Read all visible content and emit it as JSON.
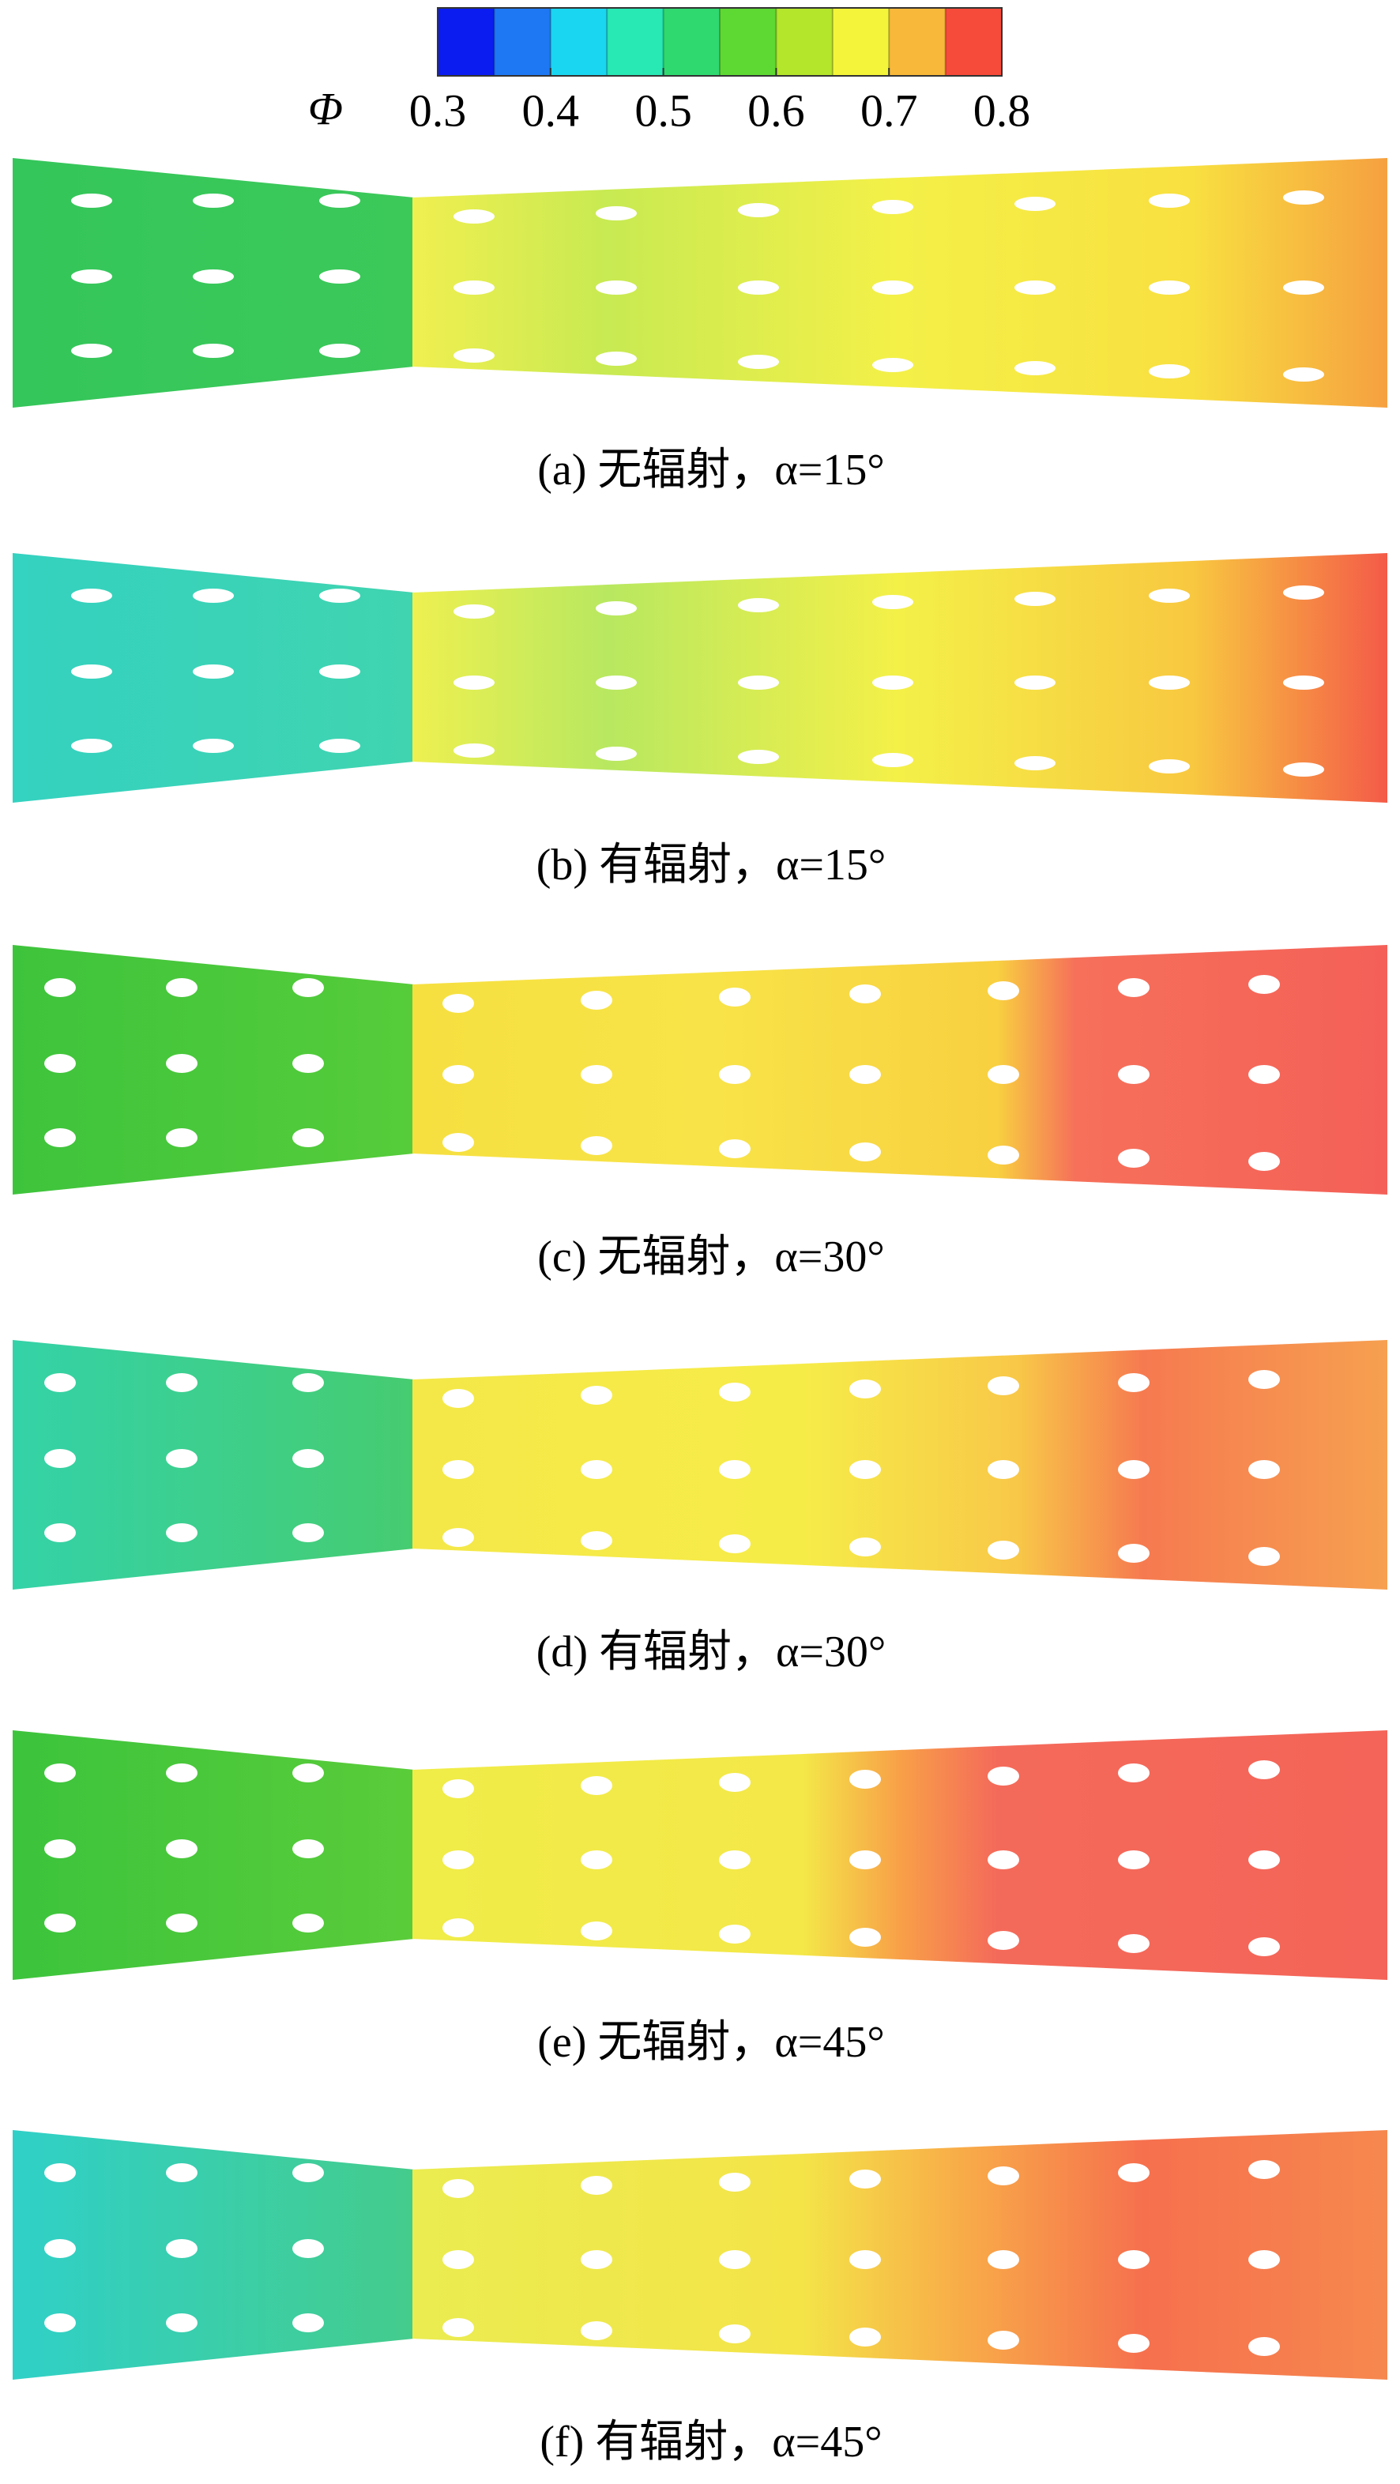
{
  "chart_data": {
    "type": "contour",
    "colorbar": {
      "label": "Φ",
      "clim": [
        0.3,
        0.8
      ],
      "ticks": [
        0.3,
        0.4,
        0.5,
        0.6,
        0.7,
        0.8
      ],
      "colors": [
        "#0a1cf0",
        "#1e78f4",
        "#1ad6f0",
        "#28e8b4",
        "#30d870",
        "#5ed832",
        "#b4e62c",
        "#f4f43a",
        "#f8b83a",
        "#f64a3a"
      ]
    },
    "panels": [
      {
        "caption": "(a) 无辐射，α=15°"
      },
      {
        "caption": "(b) 有辐射，α=15°"
      },
      {
        "caption": "(c) 无辐射，α=30°"
      },
      {
        "caption": "(d) 有辐射，α=30°"
      },
      {
        "caption": "(e) 无辐射，α=45°"
      },
      {
        "caption": "(f) 有辐射，α=45°"
      }
    ]
  }
}
